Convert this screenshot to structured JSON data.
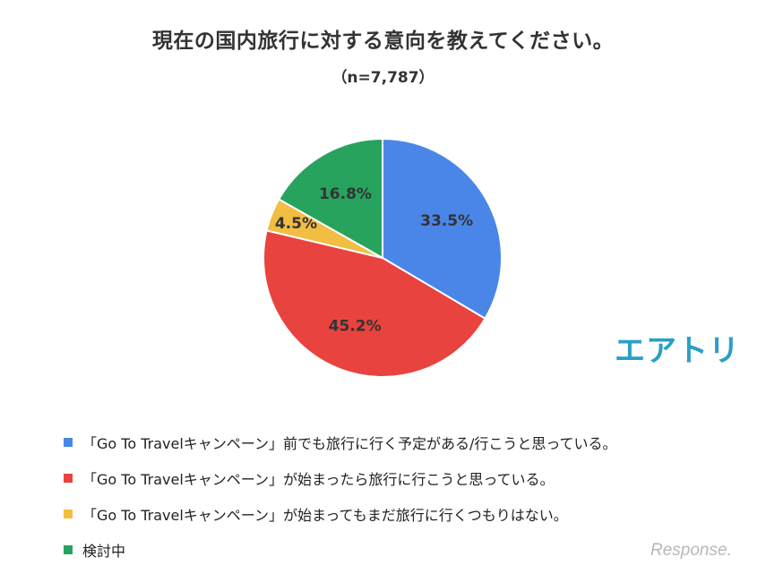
{
  "chart_data": {
    "type": "pie",
    "title": "現在の国内旅行に対する意向を教えてください。",
    "subtitle": "（n=7,787）",
    "slices": [
      {
        "label": "「Go To Travelキャンペーン」前でも旅行に行く予定がある/行こうと思っている。",
        "value": 33.5,
        "value_label": "33.5%",
        "color": "#4a86e8"
      },
      {
        "label": "「Go To Travelキャンペーン」が始まったら旅行に行こうと思っている。",
        "value": 45.2,
        "value_label": "45.2%",
        "color": "#e8433f"
      },
      {
        "label": "「Go To Travelキャンペーン」が始まってもまだ旅行に行くつもりはない。",
        "value": 4.5,
        "value_label": "4.5%",
        "color": "#f1bd42"
      },
      {
        "label": "検討中",
        "value": 16.8,
        "value_label": "16.8%",
        "color": "#27a35e"
      }
    ],
    "start_angle": "12 o'clock",
    "direction": "clockwise",
    "legend_position": "bottom"
  },
  "branding": {
    "logo": "エアトリ",
    "watermark": "Response."
  }
}
